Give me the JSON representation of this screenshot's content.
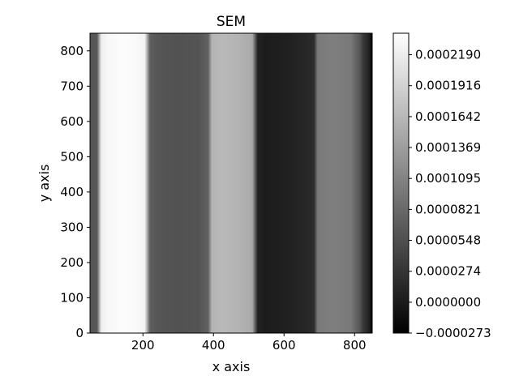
{
  "chart_data": {
    "type": "heatmap",
    "title": "SEM",
    "xlabel": "x axis",
    "ylabel": "y axis",
    "xlim": [
      50,
      850
    ],
    "ylim": [
      0,
      850
    ],
    "x_ticks": [
      "200",
      "400",
      "600",
      "800"
    ],
    "x_tick_values": [
      200,
      400,
      600,
      800
    ],
    "y_ticks": [
      "0",
      "100",
      "200",
      "300",
      "400",
      "500",
      "600",
      "700",
      "800"
    ],
    "y_tick_values": [
      0,
      100,
      200,
      300,
      400,
      500,
      600,
      700,
      800
    ],
    "colormap": "gray",
    "colorbar": {
      "min": -2.73e-05,
      "max": 0.000238,
      "tick_labels": [
        "−0.0000273",
        "0.0000000",
        "0.0000274",
        "0.0000548",
        "0.0000821",
        "0.0001095",
        "0.0001369",
        "0.0001642",
        "0.0001916",
        "0.0002190"
      ],
      "tick_values": [
        -2.73e-05,
        0.0,
        2.74e-05,
        5.48e-05,
        8.21e-05,
        0.0001095,
        0.0001369,
        0.0001642,
        0.0001916,
        0.000219
      ]
    },
    "profile_along_x": {
      "x": [
        50,
        70,
        82,
        100,
        140,
        180,
        205,
        220,
        240,
        300,
        360,
        385,
        395,
        420,
        470,
        510,
        525,
        545,
        600,
        660,
        685,
        695,
        740,
        790,
        815,
        825,
        840,
        850
      ],
      "value": [
        6e-05,
        6.5e-05,
        0.00022,
        0.00023,
        0.000236,
        0.000232,
        0.000225,
        7e-05,
        6.2e-05,
        5.8e-05,
        6e-05,
        7.5e-05,
        0.00016,
        0.000165,
        0.00016,
        0.00015,
        1e-05,
        2e-06,
        5e-06,
        1.2e-05,
        2e-05,
        0.0001,
        0.000105,
        9.8e-05,
        6e-05,
        3e-05,
        1e-05,
        -2.7e-05
      ]
    },
    "grid": false,
    "colorbar_position": "right"
  }
}
